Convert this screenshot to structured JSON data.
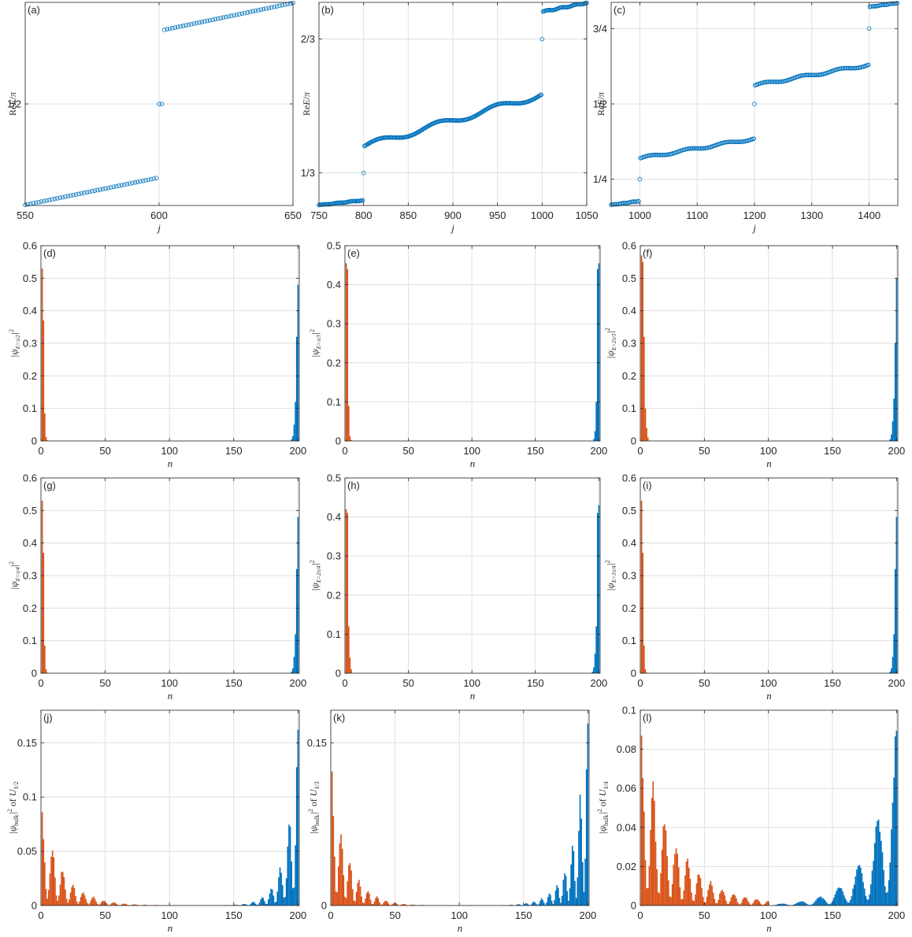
{
  "colors": {
    "blue": "#0072BD",
    "orange": "#D95319",
    "grid": "#DFDFDF",
    "axis": "#262626"
  },
  "chart_data": [
    {
      "panel": "(a)",
      "type": "scatter",
      "xlabel": "j",
      "ylabel": "ReE/π",
      "xlim": [
        550,
        650
      ],
      "ylim": [
        0,
        1
      ],
      "xticks": [
        550,
        600,
        650
      ],
      "xticklabels": [
        "550",
        "600",
        "650"
      ],
      "yticks": [
        0.5
      ],
      "yticklabels": [
        "1/2"
      ],
      "grid": true,
      "marker": "circle-open",
      "series": [
        {
          "x": [
            550,
            599
          ],
          "y": [
            0.003,
            0.135
          ]
        },
        {
          "x": [
            600,
            601
          ],
          "y": [
            0.5,
            0.5
          ]
        },
        {
          "x": [
            602,
            650
          ],
          "y": [
            0.865,
            0.997
          ]
        }
      ]
    },
    {
      "panel": "(b)",
      "type": "scatter",
      "xlabel": "j",
      "ylabel": "ReE/π",
      "xlim": [
        750,
        1050
      ],
      "ylim": [
        0.252,
        0.758
      ],
      "xticks": [
        750,
        800,
        850,
        900,
        950,
        1000,
        1050
      ],
      "xticklabels": [
        "750",
        "800",
        "850",
        "900",
        "950",
        "1000",
        "1050"
      ],
      "yticks": [
        0.3333,
        0.6667
      ],
      "yticklabels": [
        "1/3",
        "2/3"
      ],
      "grid": true,
      "marker": "circle-open",
      "series": [
        {
          "x": [
            750,
            799
          ],
          "y": [
            0.253,
            0.265
          ]
        },
        {
          "x": [
            800
          ],
          "y": [
            0.333
          ]
        },
        {
          "x": [
            801,
            999
          ],
          "y": [
            0.4,
            0.528
          ]
        },
        {
          "x": [
            1000
          ],
          "y": [
            0.6667
          ]
        },
        {
          "x": [
            1001,
            1050
          ],
          "y": [
            0.735,
            0.757
          ]
        }
      ]
    },
    {
      "panel": "(c)",
      "type": "scatter",
      "xlabel": "j",
      "ylabel": "ReE/π",
      "xlim": [
        950,
        1450
      ],
      "ylim": [
        0.163,
        0.837
      ],
      "xticks": [
        1000,
        1100,
        1200,
        1300,
        1400
      ],
      "xticklabels": [
        "1000",
        "1100",
        "1200",
        "1300",
        "1400"
      ],
      "yticks": [
        0.25,
        0.5,
        0.75
      ],
      "yticklabels": [
        "1/4",
        "1/2",
        "3/4"
      ],
      "grid": true,
      "marker": "circle-open",
      "series": [
        {
          "x": [
            950,
            999
          ],
          "y": [
            0.165,
            0.178
          ]
        },
        {
          "x": [
            1000
          ],
          "y": [
            0.25
          ]
        },
        {
          "x": [
            1001,
            1199
          ],
          "y": [
            0.32,
            0.385
          ]
        },
        {
          "x": [
            1200
          ],
          "y": [
            0.5
          ]
        },
        {
          "x": [
            1201,
            1399
          ],
          "y": [
            0.562,
            0.63
          ]
        },
        {
          "x": [
            1400
          ],
          "y": [
            0.75
          ]
        },
        {
          "x": [
            1401,
            1450
          ],
          "y": [
            0.822,
            0.835
          ]
        }
      ]
    },
    {
      "panel": "(d)",
      "type": "bar",
      "xlabel": "n",
      "ylabel": "|ψ_{E=π/2}|²",
      "xlim": [
        0,
        201
      ],
      "ylim": [
        0,
        0.6
      ],
      "yticks": [
        0,
        0.1,
        0.2,
        0.3,
        0.4,
        0.5,
        0.6
      ],
      "yticklabels": [
        "0",
        "0.1",
        "0.2",
        "0.3",
        "0.4",
        "0.5",
        "0.6"
      ],
      "series": [
        {
          "color": "orange",
          "start": 1,
          "values": [
            0.53,
            0.37,
            0.085,
            0.012,
            0.002
          ]
        },
        {
          "color": "blue",
          "end": 200,
          "values": [
            0.48,
            0.32,
            0.12,
            0.05,
            0.015,
            0.005
          ]
        }
      ]
    },
    {
      "panel": "(e)",
      "type": "bar",
      "xlabel": "n",
      "ylabel": "|ψ_{E=π/3}|²",
      "xlim": [
        0,
        201
      ],
      "ylim": [
        0,
        0.5
      ],
      "yticks": [
        0,
        0.1,
        0.2,
        0.3,
        0.4,
        0.5
      ],
      "yticklabels": [
        "0",
        "0.1",
        "0.2",
        "0.3",
        "0.4",
        "0.5"
      ],
      "series": [
        {
          "color": "orange",
          "start": 1,
          "values": [
            0.455,
            0.44,
            0.09,
            0.012,
            0.002
          ]
        },
        {
          "color": "blue",
          "end": 200,
          "values": [
            0.455,
            0.44,
            0.1,
            0.025,
            0.005
          ]
        }
      ]
    },
    {
      "panel": "(f)",
      "type": "bar",
      "xlabel": "n",
      "ylabel": "|ψ_{E=2π/3}|²",
      "xlim": [
        0,
        201
      ],
      "ylim": [
        0,
        0.6
      ],
      "yticks": [
        0,
        0.1,
        0.2,
        0.3,
        0.4,
        0.5,
        0.6
      ],
      "yticklabels": [
        "0",
        "0.1",
        "0.2",
        "0.3",
        "0.4",
        "0.5",
        "0.6"
      ],
      "series": [
        {
          "color": "orange",
          "start": 1,
          "values": [
            0.57,
            0.55,
            0.32,
            0.1,
            0.04,
            0.01
          ]
        },
        {
          "color": "blue",
          "end": 200,
          "values": [
            0.5,
            0.3,
            0.13,
            0.06,
            0.02,
            0.005
          ]
        }
      ]
    },
    {
      "panel": "(g)",
      "type": "bar",
      "xlabel": "n",
      "ylabel": "|ψ_{E=π/4}|²",
      "xlim": [
        0,
        201
      ],
      "ylim": [
        0,
        0.6
      ],
      "yticks": [
        0,
        0.1,
        0.2,
        0.3,
        0.4,
        0.5,
        0.6
      ],
      "yticklabels": [
        "0",
        "0.1",
        "0.2",
        "0.3",
        "0.4",
        "0.5",
        "0.6"
      ],
      "series": [
        {
          "color": "orange",
          "start": 1,
          "values": [
            0.53,
            0.37,
            0.085,
            0.012,
            0.002
          ]
        },
        {
          "color": "blue",
          "end": 200,
          "values": [
            0.48,
            0.32,
            0.12,
            0.05,
            0.015,
            0.005
          ]
        }
      ]
    },
    {
      "panel": "(h)",
      "type": "bar",
      "xlabel": "n",
      "ylabel": "|ψ_{E=2π/4}|²",
      "xlim": [
        0,
        201
      ],
      "ylim": [
        0,
        0.5
      ],
      "yticks": [
        0,
        0.1,
        0.2,
        0.3,
        0.4,
        0.5
      ],
      "yticklabels": [
        "0",
        "0.1",
        "0.2",
        "0.3",
        "0.4",
        "0.5"
      ],
      "series": [
        {
          "color": "orange",
          "start": 1,
          "values": [
            0.42,
            0.41,
            0.12,
            0.04,
            0.01
          ]
        },
        {
          "color": "blue",
          "end": 200,
          "values": [
            0.43,
            0.41,
            0.12,
            0.05,
            0.015,
            0.004
          ]
        }
      ]
    },
    {
      "panel": "(i)",
      "type": "bar",
      "xlabel": "n",
      "ylabel": "|ψ_{E=3π/4}|²",
      "xlim": [
        0,
        201
      ],
      "ylim": [
        0,
        0.6
      ],
      "yticks": [
        0,
        0.1,
        0.2,
        0.3,
        0.4,
        0.5,
        0.6
      ],
      "yticklabels": [
        "0",
        "0.1",
        "0.2",
        "0.3",
        "0.4",
        "0.5",
        "0.6"
      ],
      "series": [
        {
          "color": "orange",
          "start": 1,
          "values": [
            0.53,
            0.37,
            0.085,
            0.012,
            0.002
          ]
        },
        {
          "color": "blue",
          "end": 200,
          "values": [
            0.48,
            0.32,
            0.12,
            0.05,
            0.015,
            0.005
          ]
        }
      ]
    },
    {
      "panel": "(j)",
      "type": "bar",
      "xlabel": "n",
      "ylabel": "|ψ_bulk|² of U_{1/2}",
      "xlim": [
        0,
        201
      ],
      "ylim": [
        0,
        0.18
      ],
      "yticks": [
        0,
        0.05,
        0.1,
        0.15
      ],
      "yticklabels": [
        "0",
        "0.05",
        "0.1",
        "0.15"
      ],
      "envelope": {
        "left_peak": 0.087,
        "right_peak": 0.172,
        "left_decay": 17,
        "right_decay": 9,
        "left_period": 8,
        "right_period": 7
      },
      "series": [
        {
          "color": "orange",
          "range": [
            1,
            100
          ]
        },
        {
          "color": "blue",
          "range": [
            101,
            200
          ]
        }
      ]
    },
    {
      "panel": "(k)",
      "type": "bar",
      "xlabel": "n",
      "ylabel": "|ψ_bulk|² of U_{1/3}",
      "xlim": [
        0,
        201
      ],
      "ylim": [
        0,
        0.18
      ],
      "yticks": [
        0,
        0.15
      ],
      "yticklabels": [
        "0",
        "0.15"
      ],
      "envelope": {
        "left_peak": 0.125,
        "right_peak": 0.178,
        "left_decay": 13,
        "right_decay": 11,
        "left_period": 7,
        "right_period": 6
      },
      "series": [
        {
          "color": "orange",
          "range": [
            1,
            100
          ]
        },
        {
          "color": "blue",
          "range": [
            101,
            200
          ]
        }
      ]
    },
    {
      "panel": "(l)",
      "type": "bar",
      "xlabel": "n",
      "ylabel": "|ψ_bulk|² of U_{1/4}",
      "xlim": [
        0,
        201
      ],
      "ylim": [
        0,
        0.1
      ],
      "yticks": [
        0,
        0.02,
        0.04,
        0.06,
        0.08,
        0.1
      ],
      "yticklabels": [
        "0",
        "0.02",
        "0.04",
        "0.06",
        "0.08",
        "0.1"
      ],
      "envelope": {
        "left_peak": 0.088,
        "right_peak": 0.095,
        "left_decay": 28,
        "right_decay": 20,
        "left_period": 9,
        "right_period": 15
      },
      "series": [
        {
          "color": "orange",
          "range": [
            1,
            100
          ]
        },
        {
          "color": "blue",
          "range": [
            101,
            200
          ]
        }
      ]
    }
  ],
  "common_xticks": [
    0,
    50,
    100,
    150,
    200
  ],
  "common_xticklabels": [
    "0",
    "50",
    "100",
    "150",
    "200"
  ]
}
